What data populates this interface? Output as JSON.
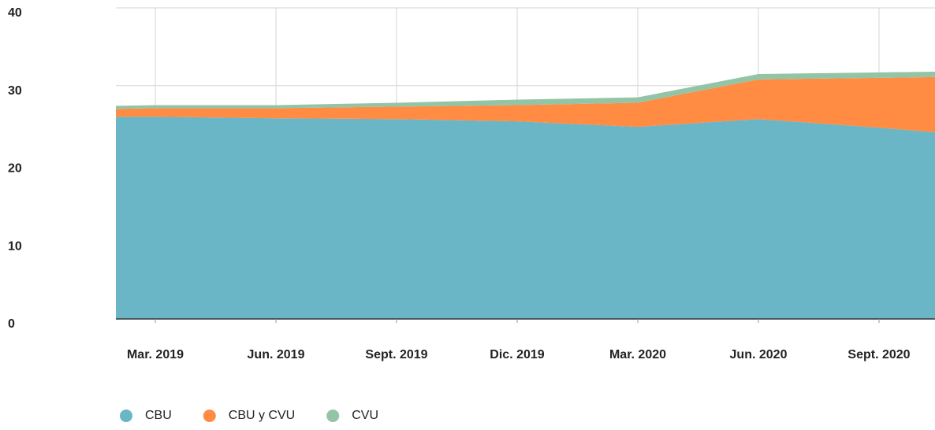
{
  "chart_data": {
    "type": "stacked-area",
    "categories": [
      null,
      "Mar. 2019",
      "Jun. 2019",
      "Sept. 2019",
      "Dic. 2019",
      "Mar. 2020",
      "Jun. 2020",
      "Sept. 2020",
      null
    ],
    "series": [
      {
        "name": "CBU",
        "color": "#6ab5c6",
        "values": [
          26.0,
          26.0,
          25.8,
          25.7,
          25.4,
          24.7,
          25.7,
          24.6,
          24.0
        ]
      },
      {
        "name": "CBU y CVU",
        "color": "#ff8c42",
        "values": [
          1.0,
          1.1,
          1.3,
          1.6,
          2.1,
          3.1,
          5.1,
          6.4,
          7.1
        ]
      },
      {
        "name": "CVU",
        "color": "#93c4a5",
        "values": [
          0.4,
          0.4,
          0.4,
          0.5,
          0.7,
          0.7,
          0.7,
          0.7,
          0.7
        ]
      }
    ],
    "ylim": [
      0,
      40
    ],
    "yticks": [
      0,
      10,
      20,
      30,
      40
    ],
    "grid": true
  }
}
